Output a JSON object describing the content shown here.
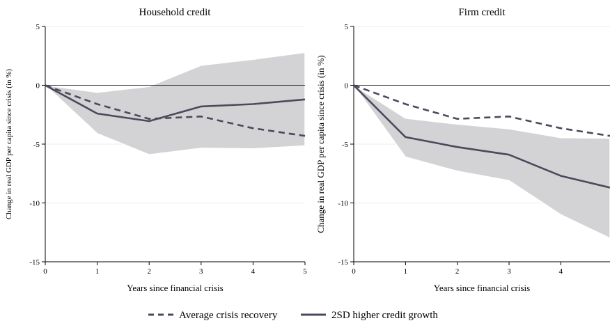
{
  "chart_data": [
    {
      "type": "line",
      "title": "Household credit",
      "xlabel": "Years since financial crisis",
      "ylabel": "Change in real GDP per capita since crisis (in %)",
      "xlim": [
        0,
        5
      ],
      "ylim": [
        -15,
        5
      ],
      "x_ticks": [
        0,
        1,
        2,
        3,
        4,
        5
      ],
      "y_ticks": [
        5,
        0,
        -5,
        -10,
        -15
      ],
      "grid": true,
      "x": [
        0,
        1,
        2,
        3,
        4,
        5
      ],
      "series": [
        {
          "name": "Average crisis recovery",
          "style": "dashed",
          "values": [
            0,
            -1.6,
            -2.85,
            -2.65,
            -3.65,
            -4.3
          ]
        },
        {
          "name": "2SD higher credit growth",
          "style": "solid",
          "values": [
            0,
            -2.4,
            -3.05,
            -1.8,
            -1.6,
            -1.2
          ]
        }
      ],
      "confidence_band": {
        "upper": [
          0,
          -0.6,
          -0.1,
          1.7,
          2.2,
          2.8
        ],
        "lower": [
          0,
          -4.1,
          -5.9,
          -5.35,
          -5.4,
          -5.15
        ]
      }
    },
    {
      "type": "line",
      "title": "Firm credit",
      "xlabel": "Years since financial crisis",
      "ylabel": "Change in real GDP per capita since crisis (in %)",
      "xlim": [
        0,
        4.95
      ],
      "ylim": [
        -15,
        5
      ],
      "x_ticks": [
        0,
        1,
        2,
        3,
        4
      ],
      "y_ticks": [
        5,
        0,
        -5,
        -10,
        -15
      ],
      "grid": true,
      "x": [
        0,
        1,
        2,
        3,
        4,
        4.95
      ],
      "series": [
        {
          "name": "Average crisis recovery",
          "style": "dashed",
          "values": [
            0,
            -1.6,
            -2.85,
            -2.65,
            -3.65,
            -4.3
          ]
        },
        {
          "name": "2SD higher credit growth",
          "style": "solid",
          "values": [
            0,
            -4.4,
            -5.25,
            -5.9,
            -7.7,
            -8.7
          ]
        }
      ],
      "confidence_band": {
        "upper": [
          0,
          -2.8,
          -3.3,
          -3.7,
          -4.45,
          -4.5
        ],
        "lower": [
          0,
          -6.1,
          -7.3,
          -8.1,
          -11,
          -13
        ]
      }
    }
  ],
  "legend": {
    "placement": "bottom-center",
    "items": [
      {
        "label": "Average crisis recovery",
        "style": "dashed"
      },
      {
        "label": "2SD higher credit growth",
        "style": "solid"
      }
    ]
  },
  "colors": {
    "line": "#4a4a5c",
    "band": "#d3d3d6",
    "band_edge": "#ffffff",
    "grid": "#ececec",
    "zero_line": "#000000"
  }
}
